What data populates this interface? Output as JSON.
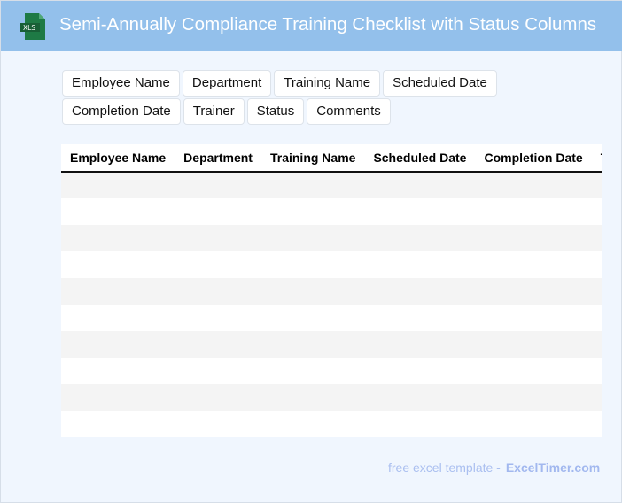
{
  "header": {
    "title": "Semi-Annually Compliance Training Checklist with Status Columns",
    "icon": "xls-file-icon",
    "icon_text": "XLS",
    "bg_color": "#93c0eb"
  },
  "tags": [
    "Employee Name",
    "Department",
    "Training Name",
    "Scheduled Date",
    "Completion Date",
    "Trainer",
    "Status",
    "Comments"
  ],
  "table": {
    "columns": [
      "Employee Name",
      "Department",
      "Training Name",
      "Scheduled Date",
      "Completion Date",
      "Trainer"
    ],
    "row_count": 10
  },
  "footer": {
    "text": "free excel template -",
    "link": "ExcelTimer.com"
  }
}
